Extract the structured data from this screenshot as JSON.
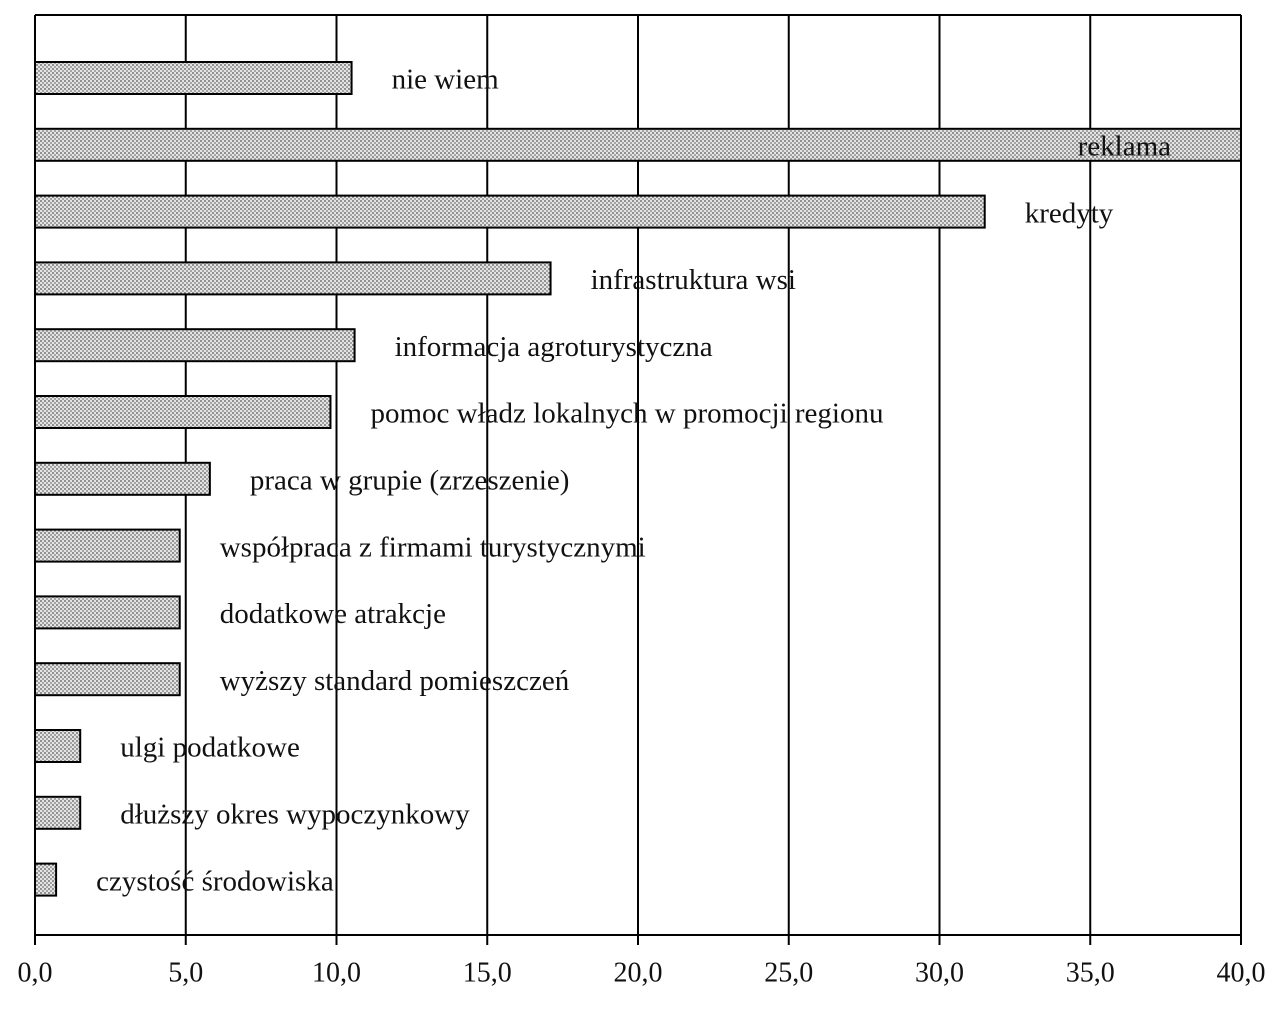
{
  "chart_data": {
    "type": "barh",
    "categories": [
      "nie wiem",
      "reklama",
      "kredyty",
      "infrastruktura wsi",
      "informacja agroturystyczna",
      "pomoc władz lokalnych w promocji regionu",
      "praca w grupie (zrzeszenie)",
      "współpraca z firmami turystycznymi",
      "dodatkowe atrakcje",
      "wyższy standard pomieszczeń",
      "ulgi podatkowe",
      "dłuższy okres wypoczynkowy",
      "czystość środowiska"
    ],
    "values": [
      10.5,
      40.0,
      31.5,
      17.1,
      10.6,
      9.8,
      5.8,
      4.8,
      4.8,
      4.8,
      1.5,
      1.5,
      0.7
    ],
    "color": "#c8c8c8",
    "xlim": [
      0,
      40
    ],
    "xticks": [
      {
        "value": 0,
        "label": "0,0"
      },
      {
        "value": 5,
        "label": "5,0"
      },
      {
        "value": 10,
        "label": "10,0"
      },
      {
        "value": 15,
        "label": "15,0"
      },
      {
        "value": 20,
        "label": "20,0"
      },
      {
        "value": 25,
        "label": "25,0"
      },
      {
        "value": 30,
        "label": "30,0"
      },
      {
        "value": 35,
        "label": "35,0"
      },
      {
        "value": 40,
        "label": "40,0"
      }
    ],
    "grid": true
  }
}
